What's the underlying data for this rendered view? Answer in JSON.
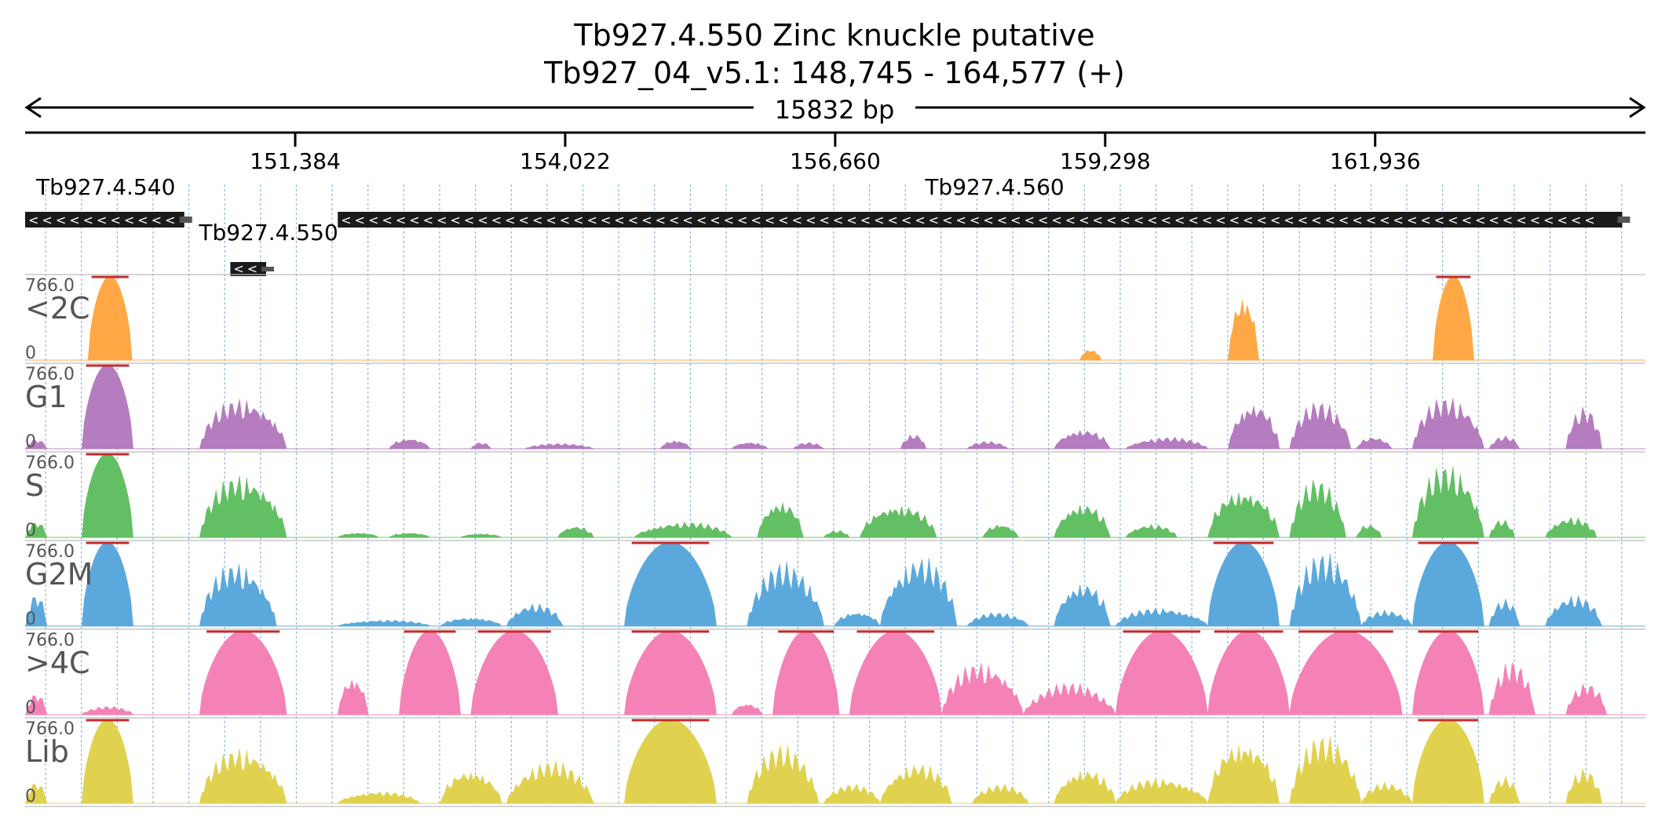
{
  "header": {
    "title": "Tb927.4.550  Zinc knuckle  putative",
    "locus": "Tb927_04_v5.1: 148,745 - 164,577 (+)",
    "span_label": "15832 bp"
  },
  "colors": {
    "<2C": "#ffa845",
    "G1": "#b57cbf",
    "S": "#63bf63",
    "G2M": "#5ba9dc",
    ">4C": "#f482b6",
    "Lib": "#e0d24f",
    "gene_bar": "#1a1a1a",
    "clip_marker": "#c6292b"
  },
  "chart_data": {
    "type": "area",
    "chromosome": "Tb927_04_v5.1",
    "xlim": [
      148745,
      164577
    ],
    "xticks": [
      151384,
      154022,
      156660,
      159298,
      161936
    ],
    "xtick_labels": [
      "151,384",
      "154,022",
      "156,660",
      "159,298",
      "161,936"
    ],
    "genes": [
      {
        "name": "Tb927.4.540",
        "start": 148745,
        "end": 150300,
        "strand": "-"
      },
      {
        "name": "Tb927.4.550",
        "start": 150750,
        "end": 151100,
        "strand": "-"
      },
      {
        "name": "Tb927.4.560",
        "start": 151800,
        "end": 164350,
        "strand": "-"
      }
    ],
    "tracks": [
      {
        "name": "<2C",
        "ymax_label": "766.0",
        "ymin_label": "0",
        "ylim": [
          0,
          766
        ],
        "peaks": [
          {
            "start": 149360,
            "end": 149790,
            "height": 766
          },
          {
            "start": 159050,
            "end": 159260,
            "height": 120
          },
          {
            "start": 160500,
            "end": 160800,
            "height": 690
          },
          {
            "start": 162500,
            "end": 162900,
            "height": 766
          }
        ]
      },
      {
        "name": "G1",
        "ymax_label": "766.0",
        "ymin_label": "0",
        "ylim": [
          0,
          766
        ],
        "peaks": [
          {
            "start": 148750,
            "end": 148960,
            "height": 90
          },
          {
            "start": 149300,
            "end": 149800,
            "height": 766
          },
          {
            "start": 150450,
            "end": 151300,
            "height": 500
          },
          {
            "start": 152300,
            "end": 152700,
            "height": 110
          },
          {
            "start": 153100,
            "end": 153300,
            "height": 60
          },
          {
            "start": 153630,
            "end": 154300,
            "height": 50
          },
          {
            "start": 154950,
            "end": 155250,
            "height": 90
          },
          {
            "start": 155650,
            "end": 156000,
            "height": 70
          },
          {
            "start": 156250,
            "end": 156550,
            "height": 60
          },
          {
            "start": 157300,
            "end": 157550,
            "height": 150
          },
          {
            "start": 157950,
            "end": 158350,
            "height": 70
          },
          {
            "start": 158800,
            "end": 159350,
            "height": 200
          },
          {
            "start": 159500,
            "end": 160300,
            "height": 110
          },
          {
            "start": 160500,
            "end": 161000,
            "height": 480
          },
          {
            "start": 161100,
            "end": 161700,
            "height": 450
          },
          {
            "start": 161750,
            "end": 162100,
            "height": 120
          },
          {
            "start": 162300,
            "end": 163000,
            "height": 500
          },
          {
            "start": 163050,
            "end": 163350,
            "height": 120
          },
          {
            "start": 163800,
            "end": 164150,
            "height": 400
          }
        ]
      },
      {
        "name": "S",
        "ymax_label": "766.0",
        "ymin_label": "0",
        "ylim": [
          0,
          766
        ],
        "peaks": [
          {
            "start": 148750,
            "end": 148960,
            "height": 150
          },
          {
            "start": 149300,
            "end": 149800,
            "height": 766
          },
          {
            "start": 150450,
            "end": 151300,
            "height": 620
          },
          {
            "start": 151800,
            "end": 152200,
            "height": 50
          },
          {
            "start": 152300,
            "end": 152700,
            "height": 50
          },
          {
            "start": 153000,
            "end": 153400,
            "height": 40
          },
          {
            "start": 153950,
            "end": 154300,
            "height": 120
          },
          {
            "start": 154700,
            "end": 155650,
            "height": 150
          },
          {
            "start": 155900,
            "end": 156350,
            "height": 380
          },
          {
            "start": 156550,
            "end": 156800,
            "height": 70
          },
          {
            "start": 156900,
            "end": 157650,
            "height": 340
          },
          {
            "start": 158100,
            "end": 158450,
            "height": 140
          },
          {
            "start": 158800,
            "end": 159350,
            "height": 350
          },
          {
            "start": 159500,
            "end": 160000,
            "height": 130
          },
          {
            "start": 160300,
            "end": 161000,
            "height": 500
          },
          {
            "start": 161100,
            "end": 161650,
            "height": 550
          },
          {
            "start": 161750,
            "end": 162000,
            "height": 130
          },
          {
            "start": 162300,
            "end": 163000,
            "height": 700
          },
          {
            "start": 163050,
            "end": 163300,
            "height": 170
          },
          {
            "start": 163600,
            "end": 164100,
            "height": 200
          }
        ]
      },
      {
        "name": "G2M",
        "ymax_label": "766.0",
        "ymin_label": "0",
        "ylim": [
          0,
          766
        ],
        "peaks": [
          {
            "start": 148750,
            "end": 148960,
            "height": 300
          },
          {
            "start": 149300,
            "end": 149800,
            "height": 766
          },
          {
            "start": 150450,
            "end": 151200,
            "height": 620
          },
          {
            "start": 151800,
            "end": 152700,
            "height": 60
          },
          {
            "start": 152800,
            "end": 153400,
            "height": 90
          },
          {
            "start": 153450,
            "end": 154000,
            "height": 220
          },
          {
            "start": 154600,
            "end": 155500,
            "height": 766
          },
          {
            "start": 155800,
            "end": 156550,
            "height": 600
          },
          {
            "start": 156650,
            "end": 157100,
            "height": 150
          },
          {
            "start": 157100,
            "end": 157850,
            "height": 680
          },
          {
            "start": 157950,
            "end": 158550,
            "height": 130
          },
          {
            "start": 158800,
            "end": 159350,
            "height": 450
          },
          {
            "start": 159400,
            "end": 160300,
            "height": 180
          },
          {
            "start": 160300,
            "end": 161000,
            "height": 766
          },
          {
            "start": 161100,
            "end": 161800,
            "height": 700
          },
          {
            "start": 161800,
            "end": 162300,
            "height": 150
          },
          {
            "start": 162300,
            "end": 163000,
            "height": 766
          },
          {
            "start": 163050,
            "end": 163350,
            "height": 250
          },
          {
            "start": 163600,
            "end": 164150,
            "height": 300
          }
        ]
      },
      {
        "name": ">4C",
        "ymax_label": "766.0",
        "ymin_label": "0",
        "ylim": [
          0,
          766
        ],
        "peaks": [
          {
            "start": 148750,
            "end": 148960,
            "height": 200
          },
          {
            "start": 149300,
            "end": 149800,
            "height": 80
          },
          {
            "start": 150450,
            "end": 151300,
            "height": 766
          },
          {
            "start": 151800,
            "end": 152100,
            "height": 400
          },
          {
            "start": 152400,
            "end": 153000,
            "height": 766
          },
          {
            "start": 153100,
            "end": 153950,
            "height": 766
          },
          {
            "start": 154600,
            "end": 155500,
            "height": 766
          },
          {
            "start": 155650,
            "end": 155950,
            "height": 120
          },
          {
            "start": 156050,
            "end": 156700,
            "height": 766
          },
          {
            "start": 156800,
            "end": 157700,
            "height": 766
          },
          {
            "start": 157700,
            "end": 158500,
            "height": 520
          },
          {
            "start": 158500,
            "end": 159400,
            "height": 300
          },
          {
            "start": 159400,
            "end": 160300,
            "height": 766
          },
          {
            "start": 160300,
            "end": 161100,
            "height": 766
          },
          {
            "start": 161100,
            "end": 162200,
            "height": 766
          },
          {
            "start": 162300,
            "end": 163000,
            "height": 766
          },
          {
            "start": 163050,
            "end": 163500,
            "height": 500
          },
          {
            "start": 163800,
            "end": 164200,
            "height": 300
          }
        ]
      },
      {
        "name": "Lib",
        "ymax_label": "766.0",
        "ymin_label": "0",
        "ylim": [
          0,
          766
        ],
        "peaks": [
          {
            "start": 148750,
            "end": 148960,
            "height": 200
          },
          {
            "start": 149300,
            "end": 149800,
            "height": 766
          },
          {
            "start": 150450,
            "end": 151300,
            "height": 550
          },
          {
            "start": 151800,
            "end": 152600,
            "height": 120
          },
          {
            "start": 152800,
            "end": 153400,
            "height": 350
          },
          {
            "start": 153450,
            "end": 154300,
            "height": 400
          },
          {
            "start": 154600,
            "end": 155500,
            "height": 766
          },
          {
            "start": 155800,
            "end": 156500,
            "height": 550
          },
          {
            "start": 156550,
            "end": 157100,
            "height": 180
          },
          {
            "start": 157100,
            "end": 157800,
            "height": 400
          },
          {
            "start": 158000,
            "end": 158550,
            "height": 180
          },
          {
            "start": 158800,
            "end": 159400,
            "height": 350
          },
          {
            "start": 159400,
            "end": 160300,
            "height": 250
          },
          {
            "start": 160300,
            "end": 161000,
            "height": 650
          },
          {
            "start": 161100,
            "end": 161800,
            "height": 650
          },
          {
            "start": 161800,
            "end": 162300,
            "height": 200
          },
          {
            "start": 162300,
            "end": 163000,
            "height": 766
          },
          {
            "start": 163050,
            "end": 163350,
            "height": 250
          },
          {
            "start": 163800,
            "end": 164150,
            "height": 330
          }
        ]
      }
    ]
  }
}
